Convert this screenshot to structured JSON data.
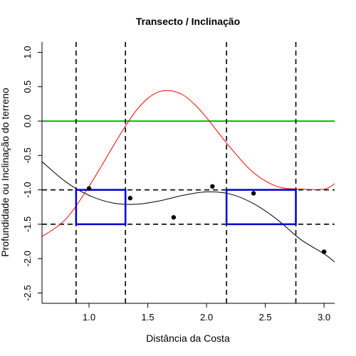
{
  "chart_data": {
    "type": "scatter",
    "title": "Transecto / Inclinação",
    "xlabel": "Distância da Costa",
    "ylabel": "Profundidade ou Inclinação do terreno",
    "xlim": [
      0.6,
      3.09
    ],
    "ylim": [
      -2.65,
      1.15
    ],
    "x_ticks": [
      "1.0",
      "1.5",
      "2.0",
      "2.5",
      "3.0"
    ],
    "x_tick_values": [
      1.0,
      1.5,
      2.0,
      2.5,
      3.0
    ],
    "y_ticks": [
      "-2.5",
      "-2.0",
      "-1.5",
      "-1.0",
      "-0.5",
      "0.0",
      "0.5",
      "1.0"
    ],
    "y_tick_values": [
      -2.5,
      -2.0,
      -1.5,
      -1.0,
      -0.5,
      0.0,
      0.5,
      1.0
    ],
    "grid": false,
    "series": [
      {
        "kind": "points",
        "color": "#000000",
        "x": [
          1.0,
          1.35,
          1.72,
          2.05,
          2.4,
          3.0
        ],
        "y": [
          -0.98,
          -1.12,
          -1.4,
          -0.95,
          -1.05,
          -1.9
        ]
      },
      {
        "kind": "line",
        "color": "#000000",
        "x": [
          0.6,
          0.8,
          1.0,
          1.2,
          1.4,
          1.6,
          1.8,
          2.0,
          2.2,
          2.4,
          2.6,
          2.8,
          3.0,
          3.09
        ],
        "y": [
          -0.59,
          -0.88,
          -1.08,
          -1.19,
          -1.21,
          -1.16,
          -1.08,
          -1.03,
          -1.06,
          -1.2,
          -1.43,
          -1.72,
          -1.93,
          -2.05
        ]
      },
      {
        "kind": "line",
        "color": "#ff0000",
        "x": [
          0.6,
          0.8,
          1.0,
          1.2,
          1.3,
          1.4,
          1.5,
          1.6,
          1.7,
          1.8,
          1.9,
          2.0,
          2.2,
          2.4,
          2.6,
          2.8,
          3.0,
          3.09
        ],
        "y": [
          -1.68,
          -1.43,
          -0.95,
          -0.38,
          -0.1,
          0.15,
          0.33,
          0.43,
          0.44,
          0.38,
          0.24,
          0.05,
          -0.38,
          -0.75,
          -0.95,
          -0.99,
          -0.99,
          -0.91
        ]
      }
    ],
    "hlines": [
      {
        "y": 0.0,
        "color": "#00bb00",
        "style": "solid"
      },
      {
        "y": -1.0,
        "color": "#000000",
        "style": "dashed"
      },
      {
        "y": -1.5,
        "color": "#000000",
        "style": "dashed"
      }
    ],
    "vlines": [
      {
        "x": 0.89,
        "color": "#000000",
        "style": "dashed"
      },
      {
        "x": 1.31,
        "color": "#000000",
        "style": "dashed"
      },
      {
        "x": 2.17,
        "color": "#000000",
        "style": "dashed"
      },
      {
        "x": 2.76,
        "color": "#000000",
        "style": "dashed"
      }
    ],
    "rects": [
      {
        "x0": 0.89,
        "x1": 1.31,
        "y0": -1.5,
        "y1": -1.0,
        "color": "#0000cc"
      },
      {
        "x0": 2.17,
        "x1": 2.76,
        "y0": -1.5,
        "y1": -1.0,
        "color": "#0000cc"
      }
    ]
  }
}
